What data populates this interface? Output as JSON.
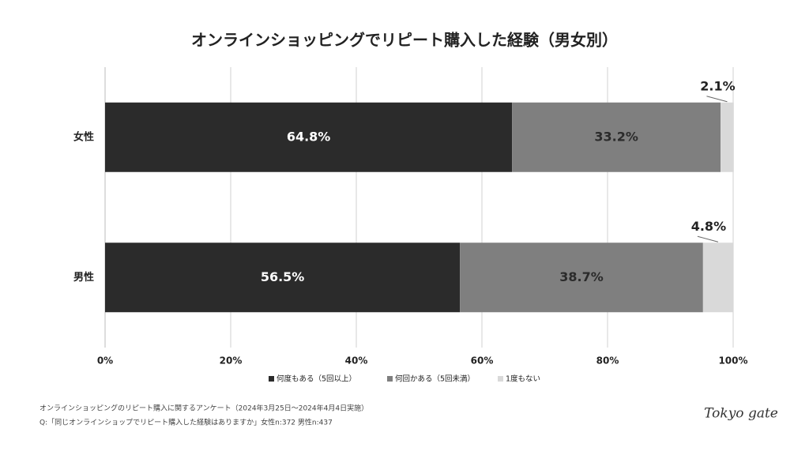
{
  "chart_data": {
    "type": "stacked-barh",
    "title": "オンラインショッピングでリピート購入した経験（男女別）",
    "categories": [
      "女性",
      "男性"
    ],
    "series": [
      {
        "name": "何度もある（5回以上）",
        "color": "#2b2b2b",
        "values": [
          64.8,
          56.5
        ],
        "value_labels": [
          "64.8%",
          "56.5%"
        ]
      },
      {
        "name": "何回かある（5回未満）",
        "color": "#7f7f7f",
        "values": [
          33.2,
          38.7
        ],
        "value_labels": [
          "33.2%",
          "38.7%"
        ]
      },
      {
        "name": "1度もない",
        "color": "#d9d9d9",
        "values": [
          2.1,
          4.8
        ],
        "value_labels": [
          "2.1%",
          "4.8%"
        ]
      }
    ],
    "xlim": [
      0,
      100
    ],
    "xticks": [
      {
        "value": 0,
        "label": "0%"
      },
      {
        "value": 20,
        "label": "20%"
      },
      {
        "value": 40,
        "label": "40%"
      },
      {
        "value": 60,
        "label": "60%"
      },
      {
        "value": 80,
        "label": "80%"
      },
      {
        "value": 100,
        "label": "100%"
      }
    ],
    "grid": true,
    "legend": "bottom",
    "source": "オンラインショッピングのリピート購入に関するアンケート（2024年3月25日〜2024年4月4日実施）",
    "question": "Q:「同じオンラインショップでリピート購入した経験はありますか」女性n:372 男性n:437",
    "logo": "Tokyo gate"
  }
}
